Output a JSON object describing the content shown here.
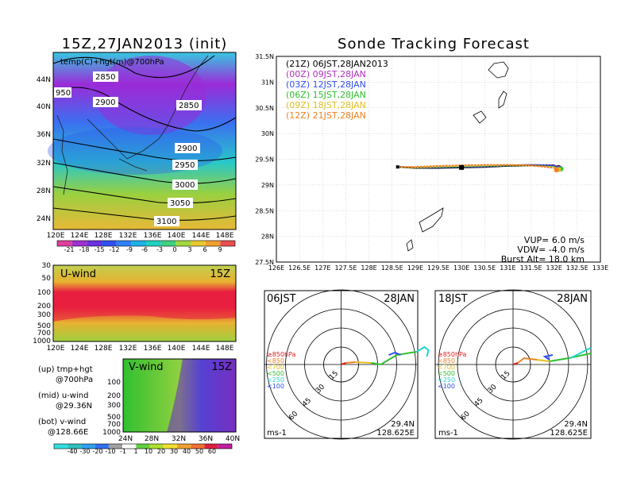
{
  "titles": {
    "left": "15Z,27JAN2013 (init)",
    "right": "Sonde Tracking Forecast"
  },
  "colors": {
    "purple": "#9b2bd8",
    "blue": "#2f5af0",
    "cyan": "#20d4d4",
    "green": "#2cc42c",
    "yellow": "#f0e030",
    "orange": "#f0a030",
    "red": "#e8203c",
    "magenta": "#d020a0",
    "track_06jst": "#000000",
    "track_09jst": "#b030c0",
    "track_12jst": "#3050f0",
    "track_15jst": "#30c030",
    "track_18jst": "#e0c020",
    "track_21jst": "#f08020"
  },
  "top_left_panel": {
    "label": "temp(C)+hgt(m)@700hPa",
    "y_ticks": [
      "44N",
      "40N",
      "36N",
      "32N",
      "28N",
      "24N"
    ],
    "x_ticks": [
      "120E",
      "124E",
      "128E",
      "132E",
      "136E",
      "140E",
      "144E",
      "148E"
    ],
    "contours": [
      "2850",
      "950",
      "2900",
      "2850",
      "2900",
      "2950",
      "3000",
      "3050",
      "3100"
    ]
  },
  "temp_colorbar": [
    "-21",
    "-18",
    "-15",
    "-12",
    "-9",
    "-6",
    "-3",
    "0",
    "3",
    "6",
    "9"
  ],
  "u_wind_panel": {
    "label": "U-wind",
    "time": "15Z",
    "y_ticks": [
      "30",
      "50",
      "100",
      "200",
      "300",
      "500",
      "700",
      "1000"
    ],
    "x_ticks": [
      "120E",
      "124E",
      "128E",
      "132E",
      "136E",
      "140E",
      "144E",
      "148E"
    ]
  },
  "v_wind_panel": {
    "label": "V-wind",
    "time": "15Z",
    "y_ticks": [
      "100",
      "200",
      "300",
      "500",
      "700",
      "1000"
    ],
    "x_ticks": [
      "24N",
      "28N",
      "32N",
      "36N",
      "40N"
    ]
  },
  "wind_colorbar": [
    "-40",
    "-30",
    "-20",
    "-10",
    "-1",
    "1",
    "10",
    "20",
    "30",
    "40",
    "50",
    "60"
  ],
  "legend_left": [
    {
      "a": "(up) tmp+hgt",
      "b": "@700hPa"
    },
    {
      "a": "(mid) u-wind",
      "b": "@29.36N"
    },
    {
      "a": "(bot) v-wind",
      "b": "@128.66E"
    }
  ],
  "track_panel": {
    "y_ticks": [
      "31.5N",
      "31N",
      "30.5N",
      "30N",
      "29.5N",
      "29N",
      "28.5N",
      "28N",
      "27.5N"
    ],
    "x_ticks": [
      "126E",
      "126.5E",
      "127E",
      "127.5E",
      "128E",
      "128.5E",
      "129E",
      "129.5E",
      "130E",
      "130.5E",
      "131E",
      "131.5E",
      "132E",
      "132.5E",
      "133E"
    ],
    "legend": [
      {
        "utc": "(21Z)",
        "jst": "06JST,28JAN2013"
      },
      {
        "utc": "(00Z)",
        "jst": "09JST,28JAN"
      },
      {
        "utc": "(03Z)",
        "jst": "12JST,28JAN"
      },
      {
        "utc": "(06Z)",
        "jst": "15JST,28JAN"
      },
      {
        "utc": "(09Z)",
        "jst": "18JST,28JAN"
      },
      {
        "utc": "(12Z)",
        "jst": "21JST,28JAN"
      }
    ],
    "params": {
      "vup": "VUP= 6.0 m/s",
      "vdw": "VDW= -4.0 m/s",
      "burst": "Burst Alt= 18.0 km"
    }
  },
  "polar_left": {
    "time": "06JST",
    "date": "28JAN",
    "rings": [
      "15",
      "30",
      "45",
      "60"
    ],
    "levels": [
      "≥850hPa",
      "<850",
      "<700",
      "<500",
      "<250",
      "<100"
    ],
    "unit": "ms-1",
    "lat": "29.4N",
    "lon": "128.625E"
  },
  "polar_right": {
    "time": "18JST",
    "date": "28JAN",
    "rings": [
      "15",
      "30",
      "45",
      "60"
    ],
    "levels": [
      "≥850hPa",
      "<850",
      "<700",
      "<500",
      "<250",
      "<100"
    ],
    "unit": "ms-1",
    "lat": "29.4N",
    "lon": "128.625E"
  },
  "chart_data": [
    {
      "type": "heatmap",
      "title": "15Z,27JAN2013 (init)",
      "variable": "temp(C)+hgt(m)@700hPa",
      "x_range": [
        120,
        150
      ],
      "y_range": [
        22,
        47
      ],
      "colorbar": [
        -21,
        -18,
        -15,
        -12,
        -9,
        -6,
        -3,
        0,
        3,
        6,
        9
      ],
      "contour_labels": [
        2850,
        950,
        2900,
        2850,
        2900,
        2950,
        3000,
        3050,
        3100
      ]
    },
    {
      "type": "heatmap",
      "variable": "U-wind",
      "time": "15Z",
      "x_range": [
        120,
        150
      ],
      "y_levels": [
        30,
        50,
        100,
        200,
        300,
        500,
        700,
        1000
      ]
    },
    {
      "type": "heatmap",
      "variable": "V-wind",
      "time": "15Z",
      "x_range": [
        22,
        40
      ],
      "y_levels": [
        100,
        200,
        300,
        500,
        700,
        1000
      ],
      "colorbar": [
        -40,
        -30,
        -20,
        -10,
        -1,
        1,
        10,
        20,
        30,
        40,
        50,
        60
      ]
    },
    {
      "type": "line",
      "title": "Sonde Tracking Forecast",
      "xlim": [
        126,
        133
      ],
      "ylim": [
        27.5,
        31.5
      ],
      "series": [
        {
          "name": "(21Z) 06JST,28JAN2013",
          "x": [
            128.62,
            129.0,
            129.5,
            130.0,
            130.5,
            131.0,
            131.5,
            132.0,
            132.1
          ],
          "y": [
            29.35,
            29.33,
            29.33,
            29.34,
            29.35,
            29.37,
            29.38,
            29.38,
            29.34
          ]
        },
        {
          "name": "(00Z) 09JST,28JAN",
          "x": [
            128.62,
            129.0,
            129.5,
            130.0,
            130.5,
            131.0,
            131.5,
            132.0,
            132.12
          ],
          "y": [
            29.35,
            29.34,
            29.34,
            29.35,
            29.36,
            29.38,
            29.39,
            29.38,
            29.33
          ]
        },
        {
          "name": "(03Z) 12JST,28JAN",
          "x": [
            128.62,
            129.0,
            129.5,
            130.0,
            130.5,
            131.0,
            131.5,
            132.0,
            132.14
          ],
          "y": [
            29.35,
            29.34,
            29.34,
            29.35,
            29.36,
            29.38,
            29.39,
            29.37,
            29.32
          ]
        },
        {
          "name": "(06Z) 15JST,28JAN",
          "x": [
            128.62,
            129.0,
            129.5,
            130.0,
            130.5,
            131.0,
            131.5,
            132.0,
            132.15
          ],
          "y": [
            29.35,
            29.34,
            29.35,
            29.36,
            29.37,
            29.38,
            29.38,
            29.35,
            29.31
          ]
        },
        {
          "name": "(09Z) 18JST,28JAN",
          "x": [
            128.62,
            129.0,
            129.5,
            130.0,
            130.5,
            131.0,
            131.5,
            132.0,
            132.1
          ],
          "y": [
            29.35,
            29.34,
            29.36,
            29.37,
            29.38,
            29.39,
            29.38,
            29.34,
            29.3
          ]
        },
        {
          "name": "(12Z) 21JST,28JAN",
          "x": [
            128.62,
            129.0,
            129.5,
            130.0,
            130.5,
            131.0,
            131.5,
            132.0,
            132.05
          ],
          "y": [
            29.35,
            29.35,
            29.37,
            29.38,
            29.39,
            29.39,
            29.38,
            29.33,
            29.29
          ]
        }
      ]
    }
  ]
}
